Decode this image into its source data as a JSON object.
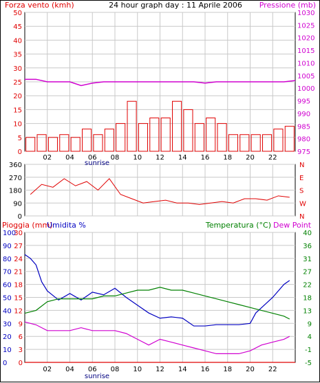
{
  "colors": {
    "wind": "#e00000",
    "gust": "#0000e0",
    "green": "#008000",
    "pressure": "#d000d0",
    "direction": "#e00000",
    "humidity": "#0000c0",
    "temperature": "#008000",
    "dewpoint": "#d000d0",
    "rain": "#e00000",
    "grid": "#c8c8c8"
  },
  "header": {
    "wind_title": "Forza vento (kmh)",
    "date_title": "24 hour graph day : 11 Aprile 2006",
    "pressure_title": "Pressione (mb)"
  },
  "bottom_header": {
    "rain_title": "Pioggia (mm)",
    "humidity_title": "Umidita %",
    "temp_title": "Temperatura (°C)",
    "dew_title": "Dew Point"
  },
  "x_ticks": [
    "02",
    "04",
    "06",
    "08",
    "10",
    "12",
    "14",
    "16",
    "18",
    "20",
    "22"
  ],
  "sunrise_label": "sunrise",
  "chart_data": [
    {
      "type": "bar",
      "panel": "wind",
      "title": "Forza vento (kmh)",
      "x_range": [
        0,
        24
      ],
      "y_left": [
        0,
        5,
        10,
        15,
        20,
        25,
        30,
        35,
        40,
        45,
        50
      ],
      "y_right": [
        975,
        980,
        985,
        990,
        995,
        1000,
        1005,
        1010,
        1015,
        1020,
        1025,
        1030
      ],
      "ylim": [
        0,
        50
      ],
      "pressure_lim": [
        975,
        1030
      ],
      "series": [
        {
          "name": "Forza vento (kmh)",
          "x": [
            0.5,
            1.5,
            2.5,
            3.5,
            4.5,
            5.5,
            6.5,
            7.5,
            8.5,
            9.5,
            10.5,
            11.5,
            12.5,
            13.5,
            14.5,
            15.5,
            16.5,
            17.5,
            18.5,
            19.5,
            20.5,
            21.5,
            22.5,
            23.5
          ],
          "values": [
            5,
            6,
            5,
            6,
            5,
            8,
            6,
            8,
            10,
            18,
            10,
            12,
            12,
            18,
            15,
            10,
            12,
            10,
            6,
            6,
            6,
            6,
            8,
            9
          ]
        },
        {
          "name": "Pressione (mb)",
          "x": [
            0,
            1,
            2,
            3,
            4,
            5,
            6,
            7,
            8,
            9,
            10,
            11,
            12,
            13,
            14,
            15,
            16,
            17,
            18,
            19,
            20,
            21,
            22,
            23,
            24
          ],
          "values": [
            1003.5,
            1003.5,
            1002.5,
            1002.5,
            1002.5,
            1001,
            1002,
            1002.5,
            1002.5,
            1002.5,
            1002.5,
            1002.5,
            1002.5,
            1002.5,
            1002.5,
            1002.5,
            1002,
            1002.5,
            1002.5,
            1002.5,
            1002.5,
            1002.5,
            1002.5,
            1002.5,
            1003
          ]
        }
      ]
    },
    {
      "type": "line",
      "panel": "direction",
      "y_left": [
        0,
        90,
        180,
        270,
        360
      ],
      "y_right": [
        "N",
        "W",
        "S",
        "E",
        "N"
      ],
      "ylim": [
        0,
        360
      ],
      "series": [
        {
          "name": "direction",
          "x": [
            0.5,
            1.5,
            2.5,
            3.5,
            4.5,
            5.5,
            6.5,
            7.5,
            8.5,
            9.5,
            10.5,
            11.5,
            12.5,
            13.5,
            14.5,
            15.5,
            16.5,
            17.5,
            18.5,
            19.5,
            20.5,
            21.5,
            22.5,
            23.5
          ],
          "values": [
            150,
            220,
            200,
            260,
            210,
            240,
            180,
            260,
            150,
            120,
            90,
            100,
            110,
            90,
            90,
            80,
            90,
            100,
            90,
            120,
            120,
            110,
            140,
            130
          ]
        }
      ]
    },
    {
      "type": "line",
      "panel": "bottom",
      "x_range": [
        0,
        24
      ],
      "y_rain": [
        0,
        3,
        6,
        9,
        12,
        15,
        18,
        21,
        24,
        27,
        30
      ],
      "y_humidity": [
        0,
        10,
        20,
        30,
        40,
        50,
        60,
        70,
        80,
        90,
        100
      ],
      "y_temp": [
        -5,
        -1,
        4,
        9,
        13,
        18,
        22,
        27,
        31,
        36,
        40
      ],
      "series": [
        {
          "name": "Umidita %",
          "x": [
            0,
            0.5,
            1,
            1.5,
            2,
            3,
            4,
            5,
            6,
            7,
            8,
            9,
            10,
            11,
            12,
            13,
            14,
            15,
            16,
            17,
            18,
            19,
            20,
            20.5,
            21,
            22,
            23,
            23.5
          ],
          "values": [
            83,
            80,
            75,
            62,
            55,
            48,
            53,
            48,
            54,
            52,
            57,
            50,
            44,
            38,
            34,
            35,
            34,
            28,
            28,
            29,
            29,
            29,
            30,
            38,
            42,
            50,
            60,
            63
          ]
        },
        {
          "name": "Temperatura (°C)",
          "x": [
            0,
            1,
            2,
            3,
            4,
            5,
            6,
            7,
            8,
            9,
            10,
            11,
            12,
            13,
            14,
            15,
            16,
            17,
            18,
            19,
            20,
            21,
            22,
            23,
            23.5
          ],
          "values": [
            12,
            13,
            16,
            17,
            17,
            17,
            17,
            18,
            18,
            19,
            20,
            20,
            21,
            20,
            20,
            19,
            18,
            17,
            16,
            15,
            14,
            13,
            12,
            11,
            10
          ]
        },
        {
          "name": "Dew Point",
          "x": [
            0,
            1,
            2,
            3,
            4,
            5,
            6,
            7,
            8,
            9,
            10,
            11,
            12,
            13,
            14,
            15,
            16,
            17,
            18,
            19,
            20,
            21,
            22,
            23,
            23.5
          ],
          "values": [
            9,
            8,
            6,
            6,
            6,
            7,
            6,
            6,
            6,
            5,
            3,
            1,
            3,
            2,
            1,
            0,
            -1,
            -2,
            -2,
            -2,
            -1,
            1,
            2,
            3,
            4
          ]
        },
        {
          "name": "Pioggia (mm)",
          "x": [
            0,
            24
          ],
          "values": [
            0,
            0
          ]
        }
      ]
    }
  ]
}
